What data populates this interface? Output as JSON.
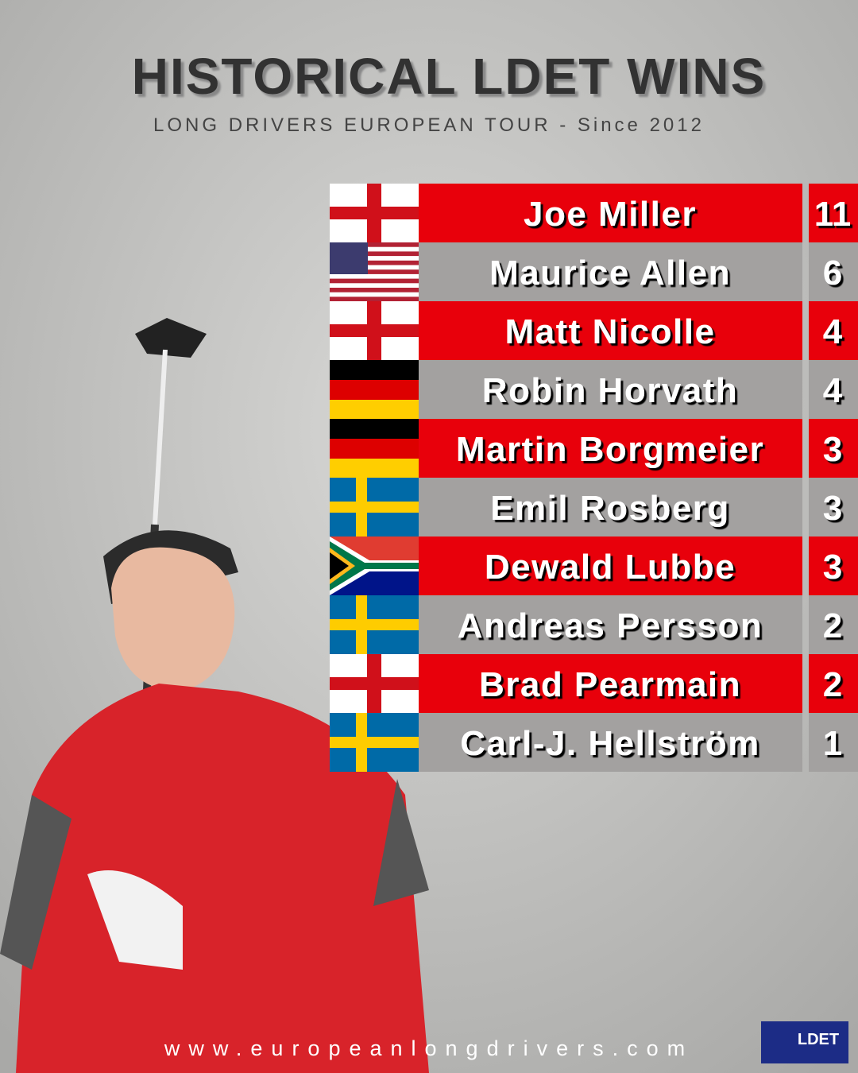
{
  "header": {
    "title": "HISTORICAL LDET WINS",
    "subtitle": "LONG DRIVERS EUROPEAN TOUR - Since 2012"
  },
  "table": {
    "rows": [
      [
        "Joe Miller",
        11
      ],
      [
        "Maurice Allen",
        6
      ],
      [
        "Matt Nicolle",
        4
      ],
      [
        "Robin Horvath",
        4
      ],
      [
        "Martin Borgmeier",
        3
      ],
      [
        "Emil Rosberg",
        3
      ],
      [
        "Dewald Lubbe",
        3
      ],
      [
        "Andreas Persson",
        2
      ],
      [
        "Brad Pearmain",
        2
      ],
      [
        "Carl-J. Hellström",
        1
      ]
    ]
  },
  "footer": {
    "url": "www.europeanlongdrivers.com",
    "logo": "LDET"
  }
}
